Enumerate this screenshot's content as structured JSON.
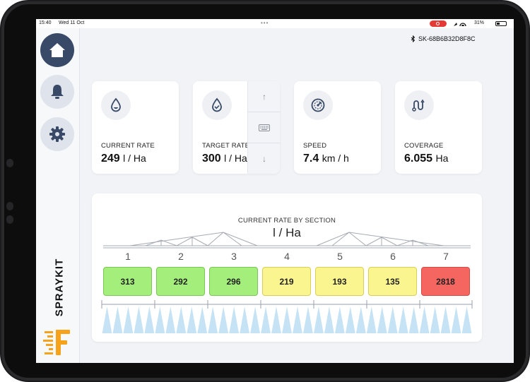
{
  "status_bar": {
    "time": "15:40",
    "date": "Wed 11 Oct",
    "battery": "31%"
  },
  "sidebar": {
    "items": [
      {
        "icon": "home-icon",
        "active": true
      },
      {
        "icon": "bell-icon",
        "active": false
      },
      {
        "icon": "gear-icon",
        "active": false
      }
    ],
    "brand": "SPRAYKIT"
  },
  "device": {
    "id": "SK-68B6B32D8F8C"
  },
  "cards": [
    {
      "label": "CURRENT RATE",
      "value": "249",
      "unit": "l / Ha",
      "icon": "droplet-icon"
    },
    {
      "label": "TARGET RATE",
      "value": "300",
      "unit": "l / Ha",
      "icon": "droplet-check-icon"
    },
    {
      "label": "SPEED",
      "value": "7.4",
      "unit": "km / h",
      "icon": "speedometer-icon"
    },
    {
      "label": "COVERAGE",
      "value": "6.055",
      "unit": "Ha",
      "icon": "route-icon"
    }
  ],
  "stepper": {
    "up": "↑",
    "down": "↓"
  },
  "sections": {
    "title": "CURRENT RATE BY SECTION",
    "unit": "l / Ha",
    "items": [
      {
        "number": "1",
        "value": "313",
        "status": "ok"
      },
      {
        "number": "2",
        "value": "292",
        "status": "ok"
      },
      {
        "number": "3",
        "value": "296",
        "status": "ok"
      },
      {
        "number": "4",
        "value": "219",
        "status": "warn"
      },
      {
        "number": "5",
        "value": "193",
        "status": "warn"
      },
      {
        "number": "6",
        "value": "135",
        "status": "warn"
      },
      {
        "number": "7",
        "value": "2818",
        "status": "alert"
      }
    ]
  },
  "colors": {
    "ok_fill": "#a4ef7c",
    "ok_border": "#7bc655",
    "warn_fill": "#fbf58f",
    "warn_border": "#d9cf58",
    "alert_fill": "#f4665f",
    "alert_border": "#d44a44",
    "nav_active": "#384a67",
    "nozzle": "#c6e3f5"
  }
}
